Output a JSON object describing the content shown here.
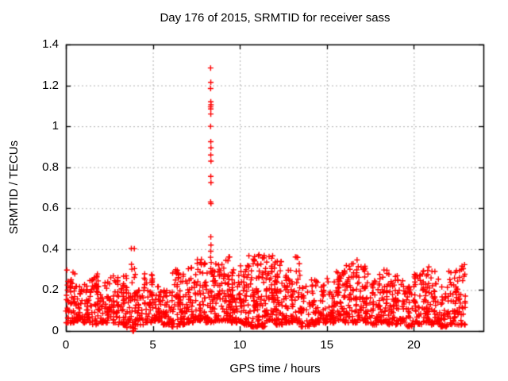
{
  "window": {
    "background": "#ffffff"
  },
  "chart_data": {
    "type": "scatter",
    "title": "Day 176 of 2015, SRMTID for receiver sass",
    "xlabel": "GPS time / hours",
    "ylabel": "SRMTID / TECUs",
    "xlim": [
      0,
      24
    ],
    "ylim": [
      0,
      1.4
    ],
    "xtick_values": [
      0,
      5,
      10,
      15,
      20
    ],
    "xtick_labels": [
      "0",
      "5",
      "10",
      "15",
      "20"
    ],
    "ytick_values": [
      0,
      0.2,
      0.4,
      0.6,
      0.8,
      1.0,
      1.2,
      1.4
    ],
    "ytick_labels": [
      "0",
      "0.2",
      "0.4",
      "0.6",
      "0.8",
      "1",
      "1.2",
      "1.4"
    ],
    "grid": true,
    "legend": "none",
    "marker": {
      "shape": "plus",
      "color": "#ff0000",
      "size": 7
    },
    "colors": {
      "points": "#ff0000",
      "grid": "#b0b0b0",
      "border": "#000000",
      "text": "#000000"
    },
    "series": [
      {
        "name": "SRMTID noise band (summary of ~2000 points, 0.5 h bins)",
        "representation": "bins",
        "bins_schema": [
          "start_hour",
          "min_tecu",
          "max_tecu",
          "count"
        ],
        "bin_width_hours": 0.5,
        "last_bin_width_hours": 0.45,
        "bins": [
          [
            0.0,
            0.04,
            0.3,
            38
          ],
          [
            0.5,
            0.05,
            0.22,
            36
          ],
          [
            1.0,
            0.04,
            0.25,
            36
          ],
          [
            1.5,
            0.03,
            0.28,
            38
          ],
          [
            2.0,
            0.04,
            0.24,
            36
          ],
          [
            2.5,
            0.04,
            0.27,
            36
          ],
          [
            3.0,
            0.03,
            0.28,
            34
          ],
          [
            3.5,
            0.01,
            0.41,
            36
          ],
          [
            4.0,
            0.03,
            0.2,
            34
          ],
          [
            4.5,
            0.04,
            0.28,
            36
          ],
          [
            5.0,
            0.05,
            0.22,
            34
          ],
          [
            5.5,
            0.03,
            0.2,
            34
          ],
          [
            6.0,
            0.02,
            0.3,
            36
          ],
          [
            6.5,
            0.03,
            0.28,
            36
          ],
          [
            7.0,
            0.04,
            0.31,
            38
          ],
          [
            7.5,
            0.05,
            0.35,
            40
          ],
          [
            8.0,
            0.04,
            0.3,
            38
          ],
          [
            8.5,
            0.05,
            0.33,
            40
          ],
          [
            9.0,
            0.05,
            0.38,
            42
          ],
          [
            9.5,
            0.04,
            0.3,
            40
          ],
          [
            10.0,
            0.03,
            0.33,
            42
          ],
          [
            10.5,
            0.02,
            0.37,
            40
          ],
          [
            11.0,
            0.02,
            0.38,
            46
          ],
          [
            11.5,
            0.05,
            0.37,
            46
          ],
          [
            12.0,
            0.03,
            0.35,
            44
          ],
          [
            12.5,
            0.04,
            0.3,
            40
          ],
          [
            13.0,
            0.04,
            0.37,
            32
          ],
          [
            13.5,
            0.02,
            0.22,
            26
          ],
          [
            14.0,
            0.03,
            0.25,
            32
          ],
          [
            14.5,
            0.04,
            0.23,
            32
          ],
          [
            15.0,
            0.04,
            0.26,
            36
          ],
          [
            15.5,
            0.05,
            0.3,
            36
          ],
          [
            16.0,
            0.04,
            0.34,
            38
          ],
          [
            16.5,
            0.04,
            0.35,
            38
          ],
          [
            17.0,
            0.04,
            0.32,
            36
          ],
          [
            17.5,
            0.03,
            0.25,
            34
          ],
          [
            18.0,
            0.04,
            0.3,
            36
          ],
          [
            18.5,
            0.03,
            0.28,
            34
          ],
          [
            19.0,
            0.03,
            0.27,
            32
          ],
          [
            19.5,
            0.02,
            0.22,
            30
          ],
          [
            20.0,
            0.03,
            0.28,
            34
          ],
          [
            20.5,
            0.04,
            0.32,
            38
          ],
          [
            21.0,
            0.03,
            0.3,
            34
          ],
          [
            21.5,
            0.02,
            0.22,
            32
          ],
          [
            22.0,
            0.03,
            0.3,
            34
          ],
          [
            22.5,
            0.03,
            0.33,
            30
          ]
        ]
      },
      {
        "name": "spike near 8.3 h",
        "representation": "points",
        "points": [
          [
            8.32,
            1.285
          ],
          [
            8.33,
            1.215
          ],
          [
            8.32,
            1.185
          ],
          [
            8.33,
            1.12
          ],
          [
            8.34,
            1.105
          ],
          [
            8.32,
            1.095
          ],
          [
            8.33,
            1.085
          ],
          [
            8.33,
            1.06
          ],
          [
            8.32,
            1.0
          ],
          [
            8.33,
            0.925
          ],
          [
            8.34,
            0.895
          ],
          [
            8.33,
            0.86
          ],
          [
            8.34,
            0.83
          ],
          [
            8.33,
            0.755
          ],
          [
            8.34,
            0.725
          ],
          [
            8.32,
            0.63
          ],
          [
            8.34,
            0.622
          ],
          [
            8.33,
            0.46
          ],
          [
            8.34,
            0.42
          ],
          [
            8.33,
            0.39
          ],
          [
            8.32,
            0.36
          ],
          [
            8.35,
            0.335
          ],
          [
            8.33,
            0.305
          ]
        ]
      },
      {
        "name": "near-zero outliers",
        "representation": "points",
        "points": [
          [
            3.85,
            0.0
          ],
          [
            3.89,
            0.0
          ]
        ]
      }
    ]
  }
}
